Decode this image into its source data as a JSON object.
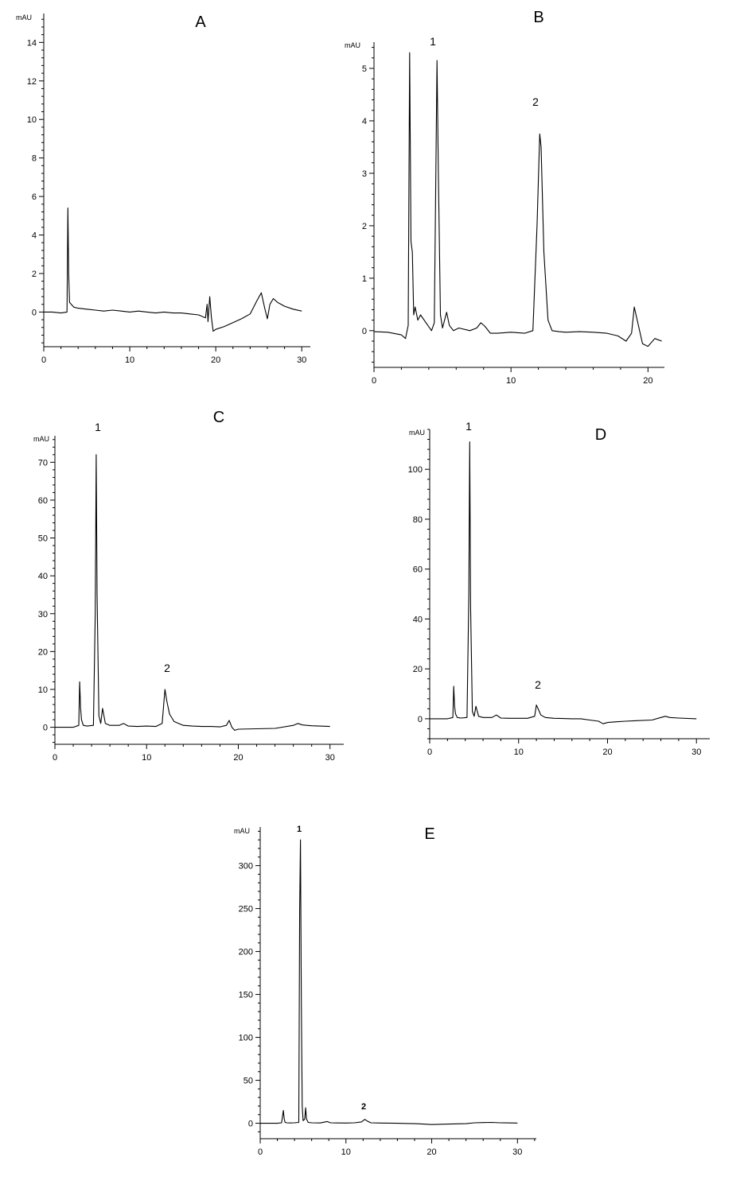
{
  "figure": {
    "panels": [
      {
        "letter": "A",
        "unit": "mAU",
        "peak_labels": []
      },
      {
        "letter": "B",
        "unit": "mAU",
        "peak_labels": [
          {
            "text": "1"
          },
          {
            "text": "2"
          }
        ]
      },
      {
        "letter": "C",
        "unit": "mAU",
        "peak_labels": [
          {
            "text": "1"
          },
          {
            "text": "2"
          }
        ]
      },
      {
        "letter": "D",
        "unit": "mAU",
        "peak_labels": [
          {
            "text": "1"
          },
          {
            "text": "2"
          }
        ]
      },
      {
        "letter": "E",
        "unit": "mAU",
        "peak_labels": [
          {
            "text": "1"
          },
          {
            "text": "2"
          }
        ]
      }
    ]
  },
  "chart_data": [
    {
      "type": "line",
      "title": "A",
      "ylabel": "mAU",
      "xlim": [
        0,
        31
      ],
      "ylim": [
        -1.8,
        15.5
      ],
      "xticks": [
        0,
        10,
        20,
        30
      ],
      "yticks": [
        0,
        2,
        4,
        6,
        8,
        10,
        12,
        14
      ],
      "series": [
        {
          "x": [
            0,
            1,
            2,
            2.7,
            2.8,
            2.9,
            3.0,
            3.2,
            3.5,
            4,
            5,
            6,
            7,
            8,
            9,
            10,
            11,
            12,
            13,
            14,
            15,
            16,
            17,
            18,
            18.8,
            19.0,
            19.1,
            19.3,
            19.5,
            19.7,
            20,
            21,
            22,
            23,
            24,
            24.8,
            25.3,
            25.7,
            26.0,
            26.3,
            26.7,
            27.2,
            28,
            29,
            30
          ],
          "y": [
            0,
            0,
            -0.05,
            0,
            5.4,
            2.0,
            0.5,
            0.4,
            0.25,
            0.2,
            0.15,
            0.1,
            0.05,
            0.1,
            0.05,
            0.0,
            0.05,
            0.0,
            -0.05,
            0.0,
            -0.05,
            -0.05,
            -0.1,
            -0.15,
            -0.3,
            0.4,
            -0.5,
            0.8,
            -0.3,
            -1.0,
            -0.9,
            -0.75,
            -0.55,
            -0.35,
            -0.1,
            0.6,
            1.0,
            0.2,
            -0.35,
            0.4,
            0.7,
            0.5,
            0.3,
            0.15,
            0.05
          ]
        }
      ],
      "annotations": []
    },
    {
      "type": "line",
      "title": "B",
      "ylabel": "mAU",
      "xlim": [
        0,
        21.2
      ],
      "ylim": [
        -0.7,
        5.5
      ],
      "xticks": [
        0,
        10,
        20
      ],
      "yticks": [
        0,
        1,
        2,
        3,
        4,
        5
      ],
      "series": [
        {
          "x": [
            0,
            1,
            2,
            2.3,
            2.5,
            2.6,
            2.65,
            2.7,
            2.8,
            2.9,
            3.0,
            3.2,
            3.4,
            3.8,
            4.2,
            4.4,
            4.6,
            4.7,
            4.85,
            5.0,
            5.3,
            5.5,
            5.8,
            6.2,
            7,
            7.5,
            7.8,
            8.1,
            8.5,
            9,
            10,
            11,
            11.6,
            11.9,
            12.1,
            12.2,
            12.4,
            12.7,
            13.0,
            13.5,
            14,
            15,
            16,
            17,
            17.8,
            18.4,
            18.8,
            19.0,
            19.3,
            19.6,
            20.0,
            20.5,
            21.0
          ],
          "y": [
            -0.02,
            -0.03,
            -0.08,
            -0.15,
            0.1,
            5.3,
            3.6,
            1.7,
            1.5,
            0.3,
            0.45,
            0.2,
            0.3,
            0.15,
            0.0,
            0.15,
            5.15,
            3.0,
            0.3,
            0.05,
            0.35,
            0.1,
            0.0,
            0.05,
            0.0,
            0.05,
            0.15,
            0.08,
            -0.05,
            -0.05,
            -0.03,
            -0.05,
            0.0,
            2.0,
            3.75,
            3.5,
            1.5,
            0.2,
            0.0,
            -0.02,
            -0.03,
            -0.02,
            -0.03,
            -0.05,
            -0.1,
            -0.2,
            -0.05,
            0.45,
            0.1,
            -0.25,
            -0.3,
            -0.15,
            -0.2
          ]
        }
      ],
      "annotations": [
        {
          "text": "1",
          "x": 4.6,
          "y": 5.15
        },
        {
          "text": "2",
          "x": 12.2,
          "y": 3.75
        }
      ]
    },
    {
      "type": "line",
      "title": "C",
      "ylabel": "mAU",
      "xlim": [
        0,
        31.5
      ],
      "ylim": [
        -4.5,
        77
      ],
      "xticks": [
        0,
        10,
        20,
        30
      ],
      "yticks": [
        0,
        10,
        20,
        30,
        40,
        50,
        60,
        70
      ],
      "series": [
        {
          "x": [
            0,
            1,
            2,
            2.6,
            2.7,
            2.8,
            2.9,
            3.1,
            3.5,
            4.2,
            4.4,
            4.5,
            4.6,
            4.8,
            5.0,
            5.2,
            5.5,
            6,
            7,
            7.5,
            8,
            9,
            10,
            11,
            11.7,
            11.9,
            12.0,
            12.2,
            12.5,
            13,
            14,
            15,
            16,
            17,
            18,
            18.7,
            19.0,
            19.3,
            19.6,
            20,
            22,
            24,
            26,
            26.5,
            27,
            28,
            30
          ],
          "y": [
            0,
            0,
            0,
            0.5,
            12.0,
            5.0,
            2.0,
            0.5,
            0.3,
            0.5,
            30.0,
            72.0,
            35.0,
            3.0,
            1.0,
            5.0,
            1.0,
            0.5,
            0.5,
            1.0,
            0.3,
            0.2,
            0.3,
            0.2,
            1.0,
            7.0,
            10.0,
            7.0,
            3.5,
            1.5,
            0.5,
            0.3,
            0.2,
            0.2,
            0.1,
            0.5,
            1.8,
            0.0,
            -0.8,
            -0.5,
            -0.4,
            -0.3,
            0.5,
            1.0,
            0.6,
            0.4,
            0.2
          ]
        }
      ],
      "annotations": [
        {
          "text": "1",
          "x": 4.6,
          "y": 72
        },
        {
          "text": "2",
          "x": 12.0,
          "y": 10
        }
      ]
    },
    {
      "type": "line",
      "title": "D",
      "ylabel": "mAU",
      "xlim": [
        0,
        31.5
      ],
      "ylim": [
        -8,
        116
      ],
      "xticks": [
        0,
        10,
        20,
        30
      ],
      "yticks": [
        0,
        20,
        40,
        60,
        80,
        100
      ],
      "series": [
        {
          "x": [
            0,
            1,
            2,
            2.6,
            2.7,
            2.8,
            2.9,
            3.1,
            3.5,
            4.2,
            4.4,
            4.5,
            4.6,
            4.8,
            5.0,
            5.2,
            5.5,
            6,
            7,
            7.5,
            8,
            9,
            10,
            11,
            11.8,
            12.0,
            12.2,
            12.5,
            13,
            14,
            15,
            16,
            17,
            18,
            19,
            19.5,
            20,
            21,
            22,
            23,
            25,
            26,
            26.5,
            27,
            28,
            30
          ],
          "y": [
            0,
            0,
            0,
            0.5,
            13.0,
            5.0,
            2.0,
            0.5,
            0.3,
            0.5,
            50.0,
            111.0,
            45.0,
            3.0,
            1.0,
            5.0,
            1.0,
            0.5,
            0.5,
            1.5,
            0.3,
            0.2,
            0.2,
            0.2,
            1.0,
            5.5,
            4.0,
            1.5,
            0.5,
            0.2,
            0.1,
            0.0,
            0.0,
            -0.5,
            -1.0,
            -2.0,
            -1.5,
            -1.2,
            -1.0,
            -0.8,
            -0.5,
            0.5,
            1.0,
            0.5,
            0.3,
            0.0
          ]
        }
      ],
      "annotations": [
        {
          "text": "1",
          "x": 4.6,
          "y": 111
        },
        {
          "text": "2",
          "x": 12.2,
          "y": 5.5
        }
      ]
    },
    {
      "type": "line",
      "title": "E",
      "ylabel": "mAU",
      "xlim": [
        0,
        32.2
      ],
      "ylim": [
        -18,
        345
      ],
      "xticks": [
        0,
        10,
        20,
        30
      ],
      "yticks": [
        0,
        50,
        100,
        150,
        200,
        250,
        300
      ],
      "series": [
        {
          "x": [
            0,
            1,
            2,
            2.5,
            2.7,
            2.8,
            2.9,
            3.1,
            3.5,
            4.0,
            4.5,
            4.6,
            4.7,
            4.8,
            4.9,
            5.0,
            5.2,
            5.3,
            5.4,
            5.6,
            6,
            7,
            7.8,
            8.2,
            9,
            10,
            11,
            11.8,
            12.2,
            12.5,
            12.9,
            14,
            16,
            18,
            19,
            20,
            22,
            24,
            25,
            26,
            27,
            28,
            30
          ],
          "y": [
            0,
            0,
            0,
            0.5,
            15.0,
            5.0,
            1.0,
            0.5,
            0.3,
            0.5,
            1.0,
            250.0,
            330.0,
            140.0,
            20.0,
            3.0,
            5.0,
            18.0,
            5.0,
            1.0,
            0.5,
            0.3,
            2.0,
            0.5,
            0.3,
            0.2,
            0.5,
            1.5,
            4.5,
            2.5,
            0.5,
            0.2,
            0.0,
            -0.5,
            -1.0,
            -1.5,
            -1.0,
            -0.5,
            0.5,
            0.8,
            1.0,
            0.5,
            0.2
          ]
        }
      ],
      "annotations": [
        {
          "text": "1",
          "x": 4.6,
          "y": 330
        },
        {
          "text": "2",
          "x": 12.2,
          "y": 4.5
        }
      ]
    }
  ]
}
